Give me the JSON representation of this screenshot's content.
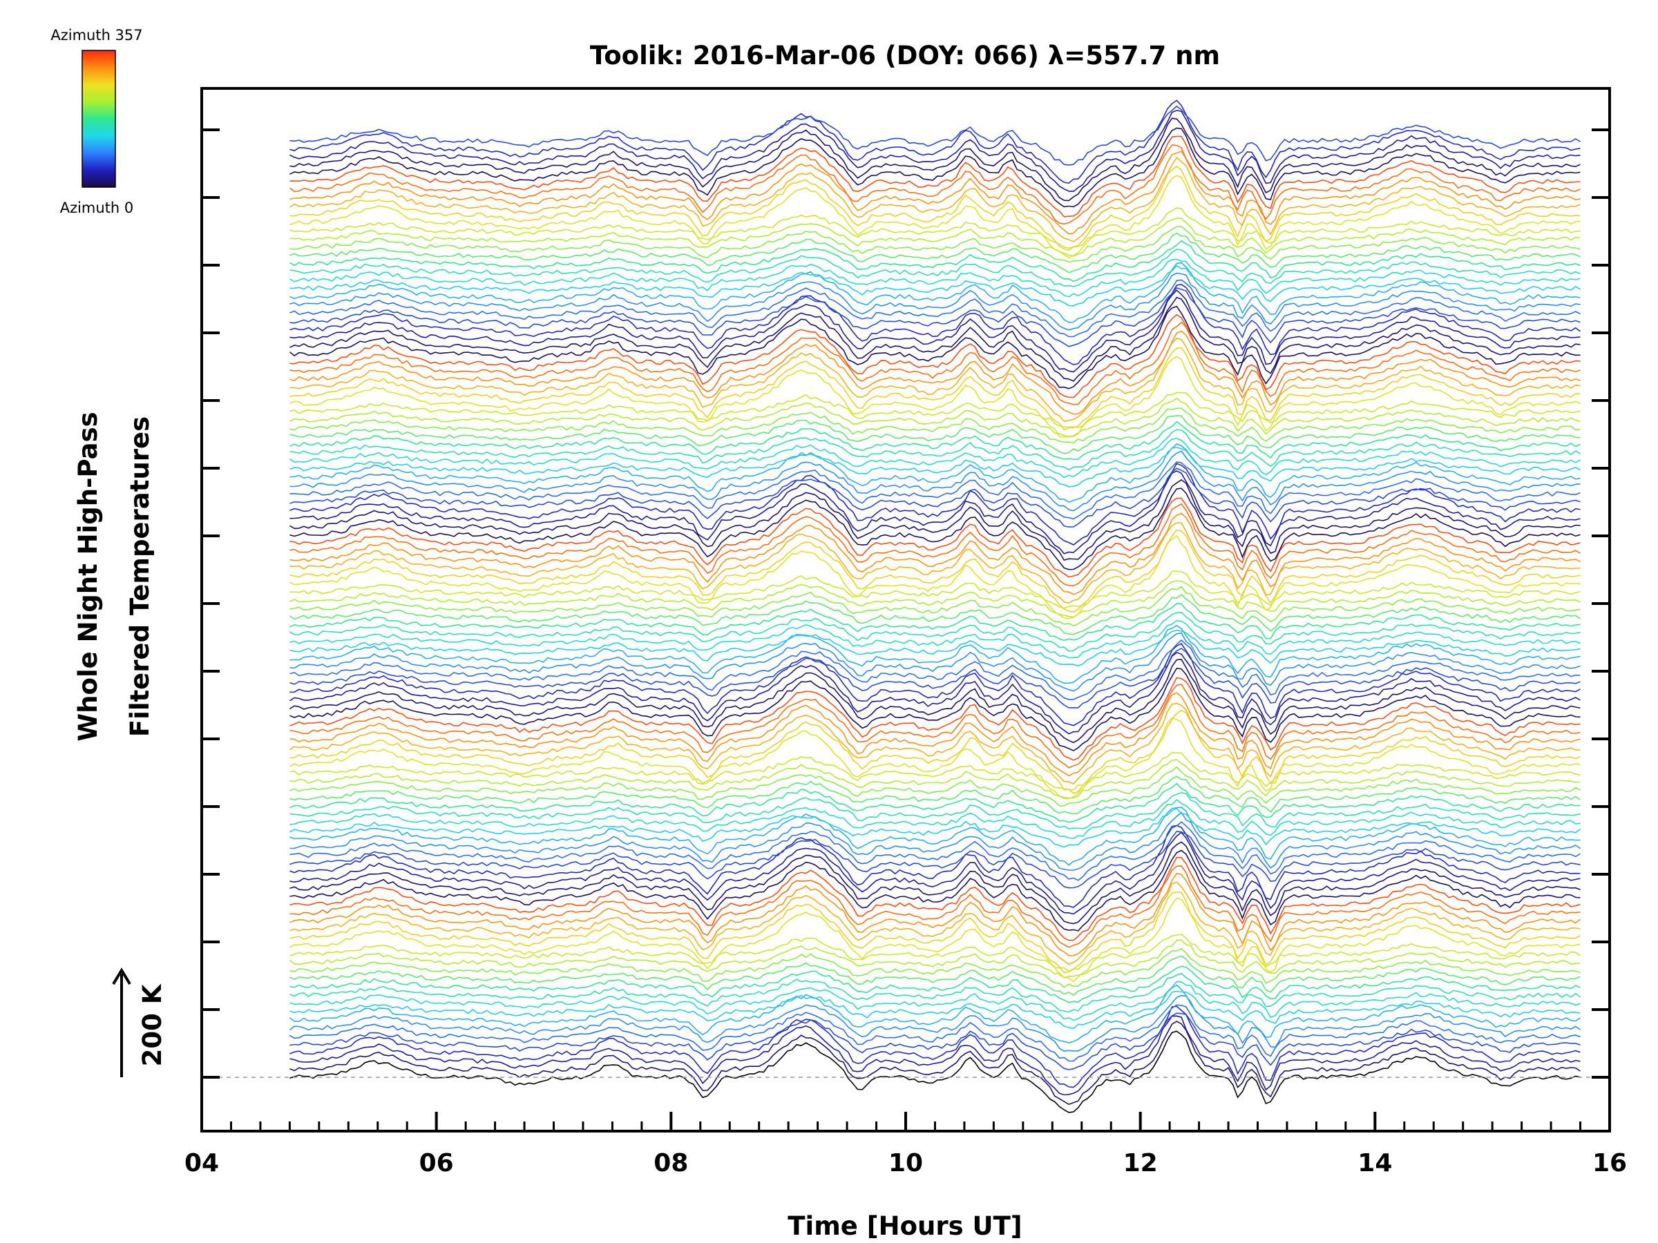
{
  "chart_data": {
    "type": "line",
    "title": "Toolik: 2016-Mar-06 (DOY: 066) λ=557.7 nm",
    "xlabel": "Time [Hours UT]",
    "ylabel_line1": "Whole Night High-Pass",
    "ylabel_line2": "Filtered Temperatures",
    "xlim": [
      4,
      16
    ],
    "x_ticks": [
      "04",
      "06",
      "08",
      "10",
      "12",
      "14",
      "16"
    ],
    "x_tick_values": [
      4,
      6,
      8,
      10,
      12,
      14,
      16
    ],
    "y_tick_count": 15,
    "scale_bar_label": "200 K",
    "colorbar": {
      "max_label": "Azimuth 357",
      "min_label": "Azimuth 0",
      "colors": [
        "#1a0a4a",
        "#2020c0",
        "#2f7fff",
        "#20d8e8",
        "#30e890",
        "#a8f030",
        "#f0e020",
        "#ff8c10",
        "#ff2a10"
      ]
    },
    "data_start_hour": 4.75,
    "data_end_hour": 15.75,
    "num_traces": 115,
    "trace_spacing_kelvin": 22,
    "series_note": "115 stacked high-pass filtered temperature traces, each offset vertically; colour encodes azimuth (0-357) on a rainbow scale repeating in groups.",
    "features_hours": [
      5.5,
      7.5,
      8.3,
      9.15,
      9.6,
      10.55,
      10.9,
      11.4,
      12.32,
      12.85,
      13.1,
      14.35,
      15.1
    ]
  }
}
